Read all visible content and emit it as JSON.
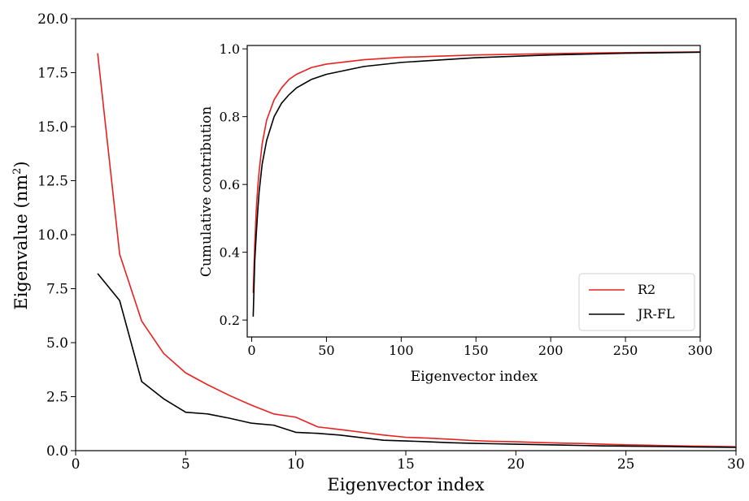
{
  "chart_data": [
    {
      "type": "line",
      "title": "",
      "xlabel": "Eigenvector index",
      "ylabel": "Eigenvalue (nm",
      "ylabel_sup": "2",
      "ylabel_suffix": ")",
      "xlim": [
        0,
        30
      ],
      "ylim": [
        0,
        20
      ],
      "xticks": [
        0,
        5,
        10,
        15,
        20,
        25,
        30
      ],
      "xtick_labels": [
        "0",
        "5",
        "10",
        "15",
        "20",
        "25",
        "30"
      ],
      "yticks": [
        0,
        2.5,
        5,
        7.5,
        10,
        12.5,
        15,
        17.5,
        20
      ],
      "ytick_labels": [
        "0.0",
        "2.5",
        "5.0",
        "7.5",
        "10.0",
        "12.5",
        "15.0",
        "17.5",
        "20.0"
      ],
      "grid": false,
      "series": [
        {
          "name": "R2",
          "color": "#e8201f",
          "x": [
            1,
            2,
            3,
            4,
            5,
            6,
            7,
            8,
            9,
            10,
            11,
            12,
            13,
            14,
            15,
            16,
            17,
            18,
            19,
            20,
            21,
            22,
            23,
            24,
            25,
            26,
            27,
            28,
            29,
            30
          ],
          "y": [
            18.4,
            9.1,
            6.0,
            4.5,
            3.6,
            3.05,
            2.55,
            2.1,
            1.7,
            1.55,
            1.1,
            0.98,
            0.85,
            0.72,
            0.62,
            0.58,
            0.53,
            0.47,
            0.43,
            0.41,
            0.38,
            0.35,
            0.33,
            0.3,
            0.27,
            0.25,
            0.23,
            0.21,
            0.2,
            0.18
          ]
        },
        {
          "name": "JR-FL",
          "color": "#000000",
          "x": [
            1,
            2,
            3,
            4,
            5,
            6,
            7,
            8,
            9,
            10,
            11,
            12,
            13,
            14,
            15,
            16,
            17,
            18,
            19,
            20,
            21,
            22,
            23,
            24,
            25,
            26,
            27,
            28,
            29,
            30
          ],
          "y": [
            8.2,
            6.95,
            3.2,
            2.4,
            1.78,
            1.7,
            1.5,
            1.27,
            1.18,
            0.85,
            0.8,
            0.72,
            0.6,
            0.48,
            0.45,
            0.41,
            0.37,
            0.34,
            0.32,
            0.3,
            0.28,
            0.26,
            0.24,
            0.22,
            0.21,
            0.2,
            0.19,
            0.17,
            0.16,
            0.15
          ]
        }
      ]
    },
    {
      "type": "line",
      "title": "",
      "xlabel": "Eigenvector index",
      "ylabel": "Cumulative contribution",
      "xlim": [
        -3,
        300
      ],
      "ylim": [
        0.15,
        1.01
      ],
      "xticks": [
        0,
        50,
        100,
        150,
        200,
        250,
        300
      ],
      "xtick_labels": [
        "0",
        "50",
        "100",
        "150",
        "200",
        "250",
        "300"
      ],
      "yticks": [
        0.2,
        0.4,
        0.6,
        0.8,
        1.0
      ],
      "ytick_labels": [
        "0.2",
        "0.4",
        "0.6",
        "0.8",
        "1.0"
      ],
      "grid": false,
      "legend": "lower-right",
      "series": [
        {
          "name": "R2",
          "color": "#e8201f",
          "x": [
            1,
            2,
            3,
            4,
            5,
            7,
            10,
            15,
            20,
            25,
            30,
            40,
            50,
            75,
            100,
            150,
            200,
            250,
            300
          ],
          "y": [
            0.28,
            0.42,
            0.52,
            0.59,
            0.64,
            0.72,
            0.79,
            0.85,
            0.885,
            0.91,
            0.925,
            0.945,
            0.955,
            0.968,
            0.975,
            0.982,
            0.986,
            0.989,
            0.991
          ]
        },
        {
          "name": "JR-FL",
          "color": "#000000",
          "x": [
            1,
            2,
            3,
            4,
            5,
            7,
            10,
            15,
            20,
            25,
            30,
            40,
            50,
            75,
            100,
            150,
            200,
            250,
            300
          ],
          "y": [
            0.21,
            0.37,
            0.45,
            0.52,
            0.58,
            0.66,
            0.73,
            0.8,
            0.84,
            0.865,
            0.885,
            0.91,
            0.925,
            0.948,
            0.96,
            0.974,
            0.982,
            0.987,
            0.99
          ]
        }
      ]
    }
  ]
}
